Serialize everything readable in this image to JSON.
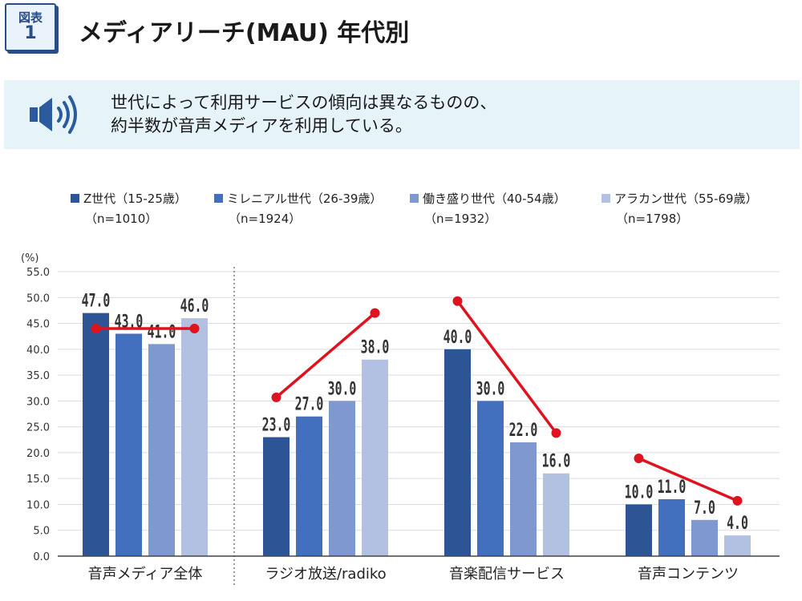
{
  "badge": {
    "line1": "図表",
    "line2": "1"
  },
  "title": "メディアリーチ(MAU) 年代別",
  "summary": {
    "line1": "世代によって利用サービスの傾向は異なるものの、",
    "line2": "約半数が音声メディアを利用している。"
  },
  "colors": {
    "bar": [
      "#2d5494",
      "#4270be",
      "#7f99d0",
      "#b2c0e2"
    ],
    "trend": "#e0121f",
    "badge": "#2b4d86",
    "summary_bg": "#e6f3f8",
    "speaker": "#2b5a9e"
  },
  "legend": [
    {
      "label": "Z世代（15-25歳）",
      "n": "（n=1010）"
    },
    {
      "label": "ミレニアル世代（26-39歳）",
      "n": "（n=1924）"
    },
    {
      "label": "働き盛り世代（40-54歳）",
      "n": "（n=1932）"
    },
    {
      "label": "アラカン世代（55-69歳）",
      "n": "（n=1798）"
    }
  ],
  "chart_data": {
    "type": "bar",
    "title": "メディアリーチ(MAU) 年代別",
    "ylabel": "(%)",
    "ylim": [
      0,
      55
    ],
    "ytick_step": 5,
    "ytick_labels": [
      "0.0",
      "5.0",
      "10.0",
      "15.0",
      "20.0",
      "25.0",
      "30.0",
      "35.0",
      "40.0",
      "45.0",
      "50.0",
      "55.0"
    ],
    "grid": true,
    "categories": [
      "音声メディア全体",
      "ラジオ放送/radiko",
      "音楽配信サービス",
      "音声コンテンツ"
    ],
    "series": [
      {
        "name": "Z世代（15-25歳）",
        "values": [
          47.0,
          23.0,
          40.0,
          10.0
        ]
      },
      {
        "name": "ミレニアル世代（26-39歳）",
        "values": [
          43.0,
          27.0,
          30.0,
          11.0
        ]
      },
      {
        "name": "働き盛り世代（40-54歳）",
        "values": [
          41.0,
          30.0,
          22.0,
          7.0
        ]
      },
      {
        "name": "アラカン世代（55-69歳）",
        "values": [
          46.0,
          38.0,
          16.0,
          4.0
        ]
      }
    ],
    "value_labels": [
      [
        "47.0",
        "43.0",
        "41.0",
        "46.0"
      ],
      [
        "23.0",
        "27.0",
        "30.0",
        "38.0"
      ],
      [
        "40.0",
        "30.0",
        "22.0",
        "16.0"
      ],
      [
        "10.0",
        "11.0",
        "7.0",
        "4.0"
      ]
    ],
    "trend_lines": [
      {
        "category": "音声メディア全体",
        "from_value": 44.0,
        "to_value": 44.0
      },
      {
        "category": "ラジオ放送/radiko",
        "from_value": 30.7,
        "to_value": 47.0
      },
      {
        "category": "音楽配信サービス",
        "from_value": 49.3,
        "to_value": 23.8
      },
      {
        "category": "音声コンテンツ",
        "from_value": 18.9,
        "to_value": 10.7
      }
    ],
    "divider_after_category": 0
  }
}
